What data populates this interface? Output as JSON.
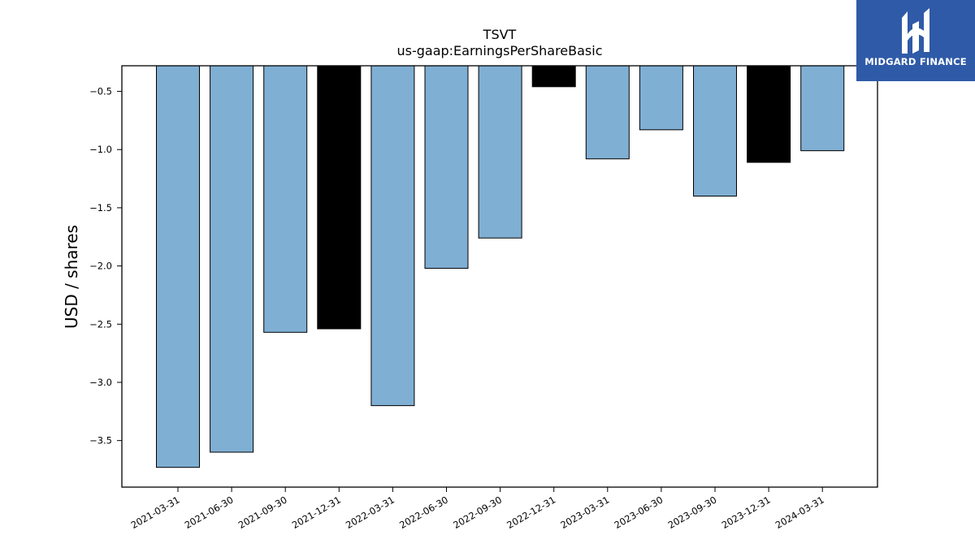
{
  "brand": {
    "name": "MIDGARD FINANCE",
    "bg_color": "#2f5aa8",
    "icon": "midgard-logo-icon"
  },
  "chart_data": {
    "type": "bar",
    "title": "TSVT",
    "subtitle": "us-gaap:EarningsPerShareBasic",
    "xlabel": "",
    "ylabel": "USD / shares",
    "ylim": [
      -3.9,
      -0.28
    ],
    "yticks": [
      -0.5,
      -1.0,
      -1.5,
      -2.0,
      -2.5,
      -3.0,
      -3.5
    ],
    "ytick_labels": [
      "−0.5",
      "−1.0",
      "−1.5",
      "−2.0",
      "−2.5",
      "−3.0",
      "−3.5"
    ],
    "grid": false,
    "legend": "none",
    "colors": {
      "quarterly": "#7fafd3",
      "annual": "#000000"
    },
    "categories": [
      "2021-03-31",
      "2021-06-30",
      "2021-09-30",
      "2021-12-31",
      "2022-03-31",
      "2022-06-30",
      "2022-09-30",
      "2022-12-31",
      "2023-03-31",
      "2023-06-30",
      "2023-09-30",
      "2023-12-31",
      "2024-03-31"
    ],
    "values": [
      -3.73,
      -3.6,
      -2.57,
      -2.54,
      -3.2,
      -2.02,
      -1.76,
      -0.46,
      -1.08,
      -0.83,
      -1.4,
      -1.11,
      -1.01
    ],
    "bar_kind": [
      "quarterly",
      "quarterly",
      "quarterly",
      "annual",
      "quarterly",
      "quarterly",
      "quarterly",
      "annual",
      "quarterly",
      "quarterly",
      "quarterly",
      "annual",
      "quarterly"
    ]
  }
}
